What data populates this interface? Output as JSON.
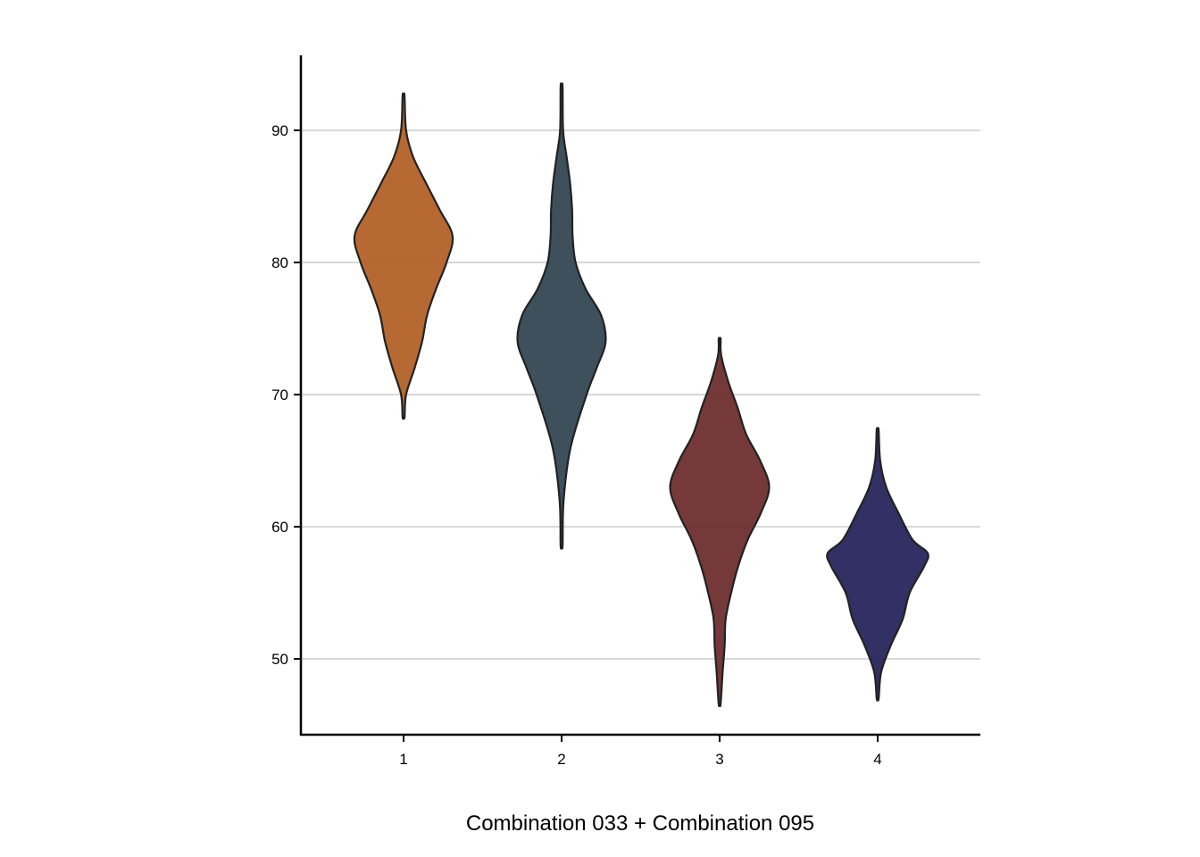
{
  "chart_data": {
    "type": "violin",
    "xlabel": "Combination 033 + Combination 095",
    "ylabel": "",
    "categories": [
      "1",
      "2",
      "3",
      "4"
    ],
    "yticks": [
      50,
      60,
      70,
      80,
      90
    ],
    "ylim": [
      44.3,
      95.6
    ],
    "grid": "horizontal",
    "series": [
      {
        "category": "1",
        "color": "#b05e22",
        "min": 68.3,
        "max": 92.6,
        "profile": [
          [
            68.3,
            0.02
          ],
          [
            70,
            0.05
          ],
          [
            72,
            0.22
          ],
          [
            74,
            0.37
          ],
          [
            76,
            0.47
          ],
          [
            78,
            0.65
          ],
          [
            80,
            0.86
          ],
          [
            82,
            0.98
          ],
          [
            84,
            0.72
          ],
          [
            86,
            0.45
          ],
          [
            88,
            0.19
          ],
          [
            90,
            0.05
          ],
          [
            92.6,
            0.02
          ]
        ]
      },
      {
        "category": "2",
        "color": "#2f434f",
        "min": 58.6,
        "max": 93.3,
        "profile": [
          [
            58.6,
            0.02
          ],
          [
            62,
            0.04
          ],
          [
            66,
            0.18
          ],
          [
            70,
            0.5
          ],
          [
            72,
            0.7
          ],
          [
            74,
            0.88
          ],
          [
            76,
            0.79
          ],
          [
            78,
            0.48
          ],
          [
            80,
            0.28
          ],
          [
            82,
            0.22
          ],
          [
            84,
            0.21
          ],
          [
            86,
            0.17
          ],
          [
            88,
            0.1
          ],
          [
            90,
            0.03
          ],
          [
            93.3,
            0.02
          ]
        ]
      },
      {
        "category": "3",
        "color": "#6a2a2a",
        "min": 46.6,
        "max": 74.2,
        "profile": [
          [
            46.6,
            0.02
          ],
          [
            49,
            0.06
          ],
          [
            51,
            0.1
          ],
          [
            53,
            0.12
          ],
          [
            55,
            0.23
          ],
          [
            57,
            0.37
          ],
          [
            59,
            0.56
          ],
          [
            61,
            0.82
          ],
          [
            63,
            0.99
          ],
          [
            65,
            0.81
          ],
          [
            67,
            0.53
          ],
          [
            69,
            0.36
          ],
          [
            71,
            0.17
          ],
          [
            73,
            0.03
          ],
          [
            74.2,
            0.02
          ]
        ]
      },
      {
        "category": "4",
        "color": "#23205a",
        "min": 47.0,
        "max": 67.3,
        "profile": [
          [
            47,
            0.02
          ],
          [
            49,
            0.07
          ],
          [
            51,
            0.26
          ],
          [
            53,
            0.5
          ],
          [
            55,
            0.64
          ],
          [
            57,
            0.93
          ],
          [
            58,
            1.0
          ],
          [
            59,
            0.7
          ],
          [
            61,
            0.42
          ],
          [
            63,
            0.17
          ],
          [
            65,
            0.05
          ],
          [
            67.3,
            0.02
          ]
        ]
      }
    ]
  }
}
